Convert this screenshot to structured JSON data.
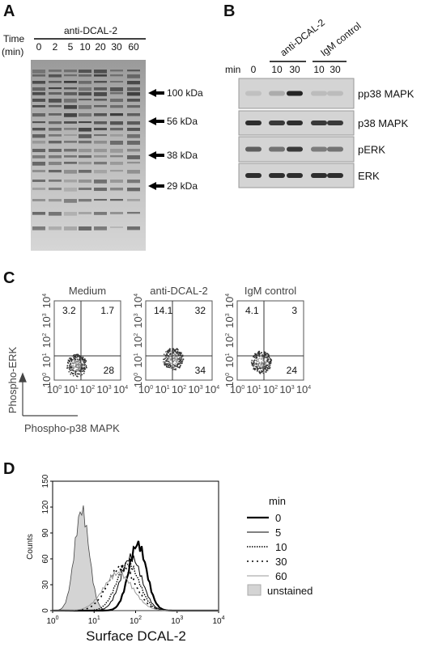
{
  "panel_a": {
    "label": "A",
    "time_label": [
      "Time",
      "(min)"
    ],
    "treatment": "anti-DCAL-2",
    "lanes": [
      0,
      2,
      5,
      10,
      20,
      30,
      60
    ],
    "markers": [
      "100 kDa",
      "56 kDa",
      "38 kDa",
      "29 kDa"
    ]
  },
  "panel_b": {
    "label": "B",
    "min_label": "min",
    "groups": [
      "anti-DCAL-2",
      "IgM control"
    ],
    "lanes": [
      0,
      10,
      30,
      10,
      30
    ],
    "rows": [
      "pp38 MAPK",
      "p38 MAPK",
      "pERK",
      "ERK"
    ]
  },
  "panel_c": {
    "label": "C",
    "log_base": "10",
    "exponents": [
      0,
      1,
      2,
      3,
      4
    ],
    "y_label": "Phospho-ERK",
    "x_label": "Phospho-p38 MAPK",
    "plots": [
      {
        "title": "Medium",
        "upper_left": 3.2,
        "upper_right": 1.7,
        "lower_right": 28
      },
      {
        "title": "anti-DCAL-2",
        "upper_left": 14.1,
        "upper_right": 32,
        "lower_right": 34
      },
      {
        "title": "IgM control",
        "upper_left": 4.1,
        "upper_right": 3.0,
        "lower_right": 24
      }
    ]
  },
  "panel_d": {
    "label": "D",
    "y_label": "Counts",
    "y_ticks": [
      0,
      30,
      60,
      90,
      120,
      150
    ],
    "log_base": "10",
    "x_exponents": [
      0,
      1,
      2,
      3,
      4
    ],
    "x_label": "Surface DCAL-2",
    "legend_title": "min",
    "legend": [
      "0",
      "5",
      "10",
      "30",
      "60",
      "unstained"
    ]
  }
}
